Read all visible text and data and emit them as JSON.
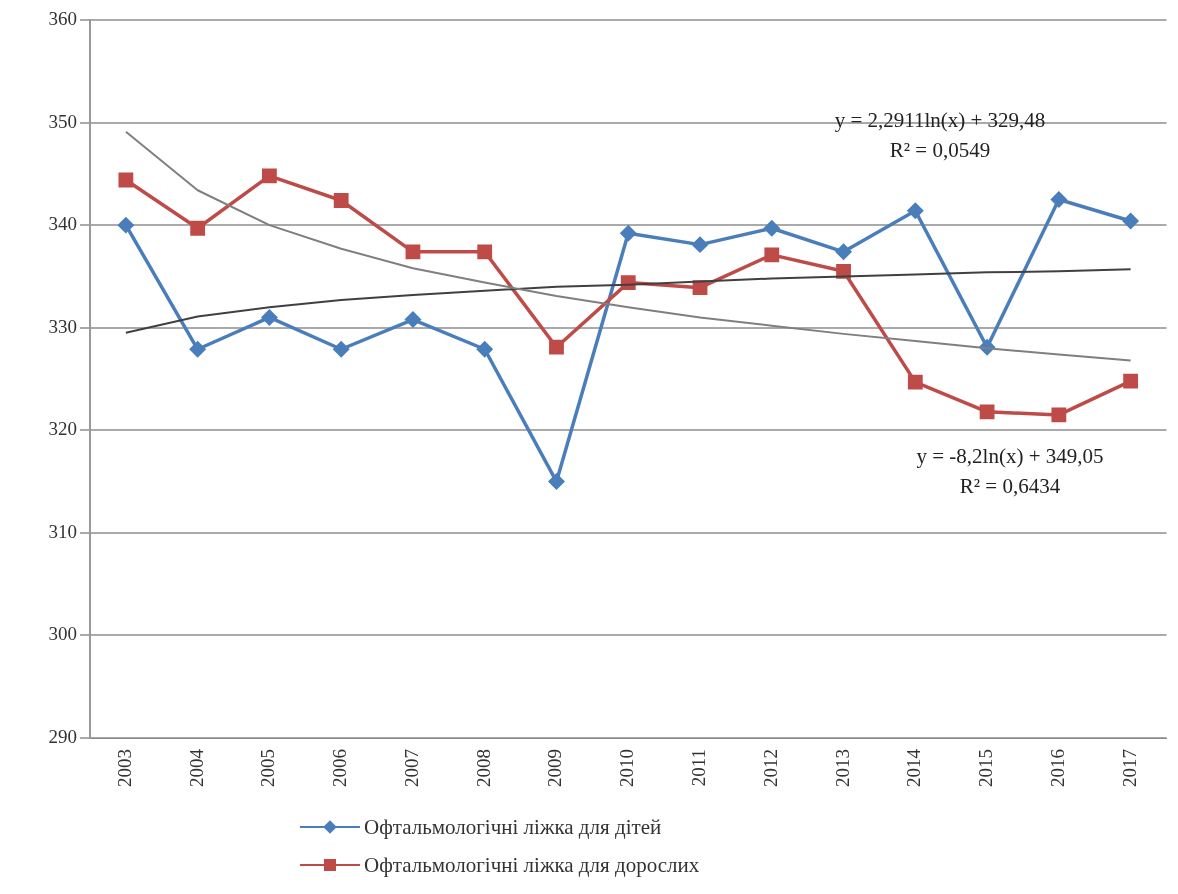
{
  "chart_data": {
    "type": "line",
    "categories": [
      "2003",
      "2004",
      "2005",
      "2006",
      "2007",
      "2008",
      "2009",
      "2010",
      "2011",
      "2012",
      "2013",
      "2014",
      "2015",
      "2016",
      "2017"
    ],
    "series": [
      {
        "name": "Офтальмологічні ліжка для дітей",
        "color": "#4a7ebb",
        "marker": "diamond",
        "values": [
          340.0,
          327.9,
          331.0,
          327.9,
          330.8,
          327.9,
          315.0,
          339.2,
          338.1,
          339.7,
          337.4,
          341.4,
          328.1,
          342.5,
          340.4
        ]
      },
      {
        "name": "Офтальмологічні ліжка для дорослих",
        "color": "#be4b48",
        "marker": "square",
        "values": [
          344.4,
          339.7,
          344.8,
          342.4,
          337.4,
          337.4,
          328.1,
          334.4,
          333.9,
          337.1,
          335.5,
          324.7,
          321.8,
          321.5,
          324.8
        ]
      },
      {
        "color": "#404040",
        "marker": "none",
        "values": [
          329.5,
          331.1,
          332.0,
          332.7,
          333.2,
          333.6,
          334.0,
          334.2,
          334.5,
          334.8,
          335.0,
          335.2,
          335.4,
          335.5,
          335.7
        ]
      },
      {
        "color": "#7f7f7f",
        "marker": "none",
        "values": [
          349.1,
          343.4,
          340.0,
          337.7,
          335.8,
          334.4,
          333.1,
          332.0,
          331.0,
          330.2,
          329.4,
          328.7,
          328.0,
          327.4,
          326.8
        ]
      }
    ],
    "ylim": [
      290,
      360
    ],
    "yticks": [
      290,
      300,
      310,
      320,
      330,
      340,
      350,
      360
    ],
    "grid": "y",
    "legend": "bottom",
    "annotations": [
      "y = 2,2911ln(x) + 329,48",
      "R² = 0,0549",
      "y = -8,2ln(x) + 349,05",
      "R² = 0,6434"
    ]
  }
}
